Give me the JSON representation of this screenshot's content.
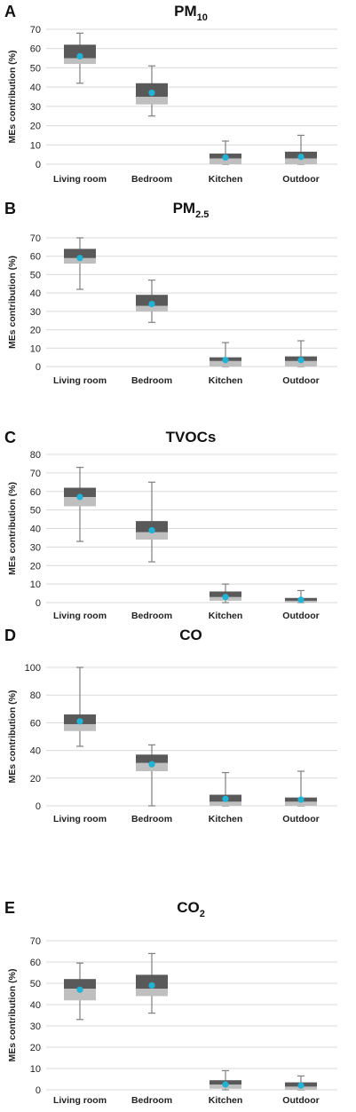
{
  "chart_data": [
    {
      "panel_label": "A",
      "type": "box",
      "title": "PM",
      "title_sub": "10",
      "ylabel": "MEs contribution (%)",
      "categories": [
        "Living room",
        "Bedroom",
        "Kitchen",
        "Outdoor"
      ],
      "ylim": [
        0,
        70
      ],
      "yticks": [
        0,
        10,
        20,
        30,
        40,
        50,
        60,
        70
      ],
      "grid": true,
      "boxes": [
        {
          "min": 42,
          "q1": 52,
          "median": 55,
          "q3": 62,
          "max": 68,
          "mean": 56
        },
        {
          "min": 25,
          "q1": 31,
          "median": 35,
          "q3": 42,
          "max": 51,
          "mean": 37
        },
        {
          "min": 0,
          "q1": 0,
          "median": 3,
          "q3": 5.5,
          "max": 12,
          "mean": 3.5
        },
        {
          "min": 0,
          "q1": 0,
          "median": 3,
          "q3": 6.5,
          "max": 15,
          "mean": 3.8
        }
      ]
    },
    {
      "panel_label": "B",
      "type": "box",
      "title": "PM",
      "title_sub": "2.5",
      "ylabel": "MEs contribution (%)",
      "categories": [
        "Living room",
        "Bedroom",
        "Kitchen",
        "Outdoor"
      ],
      "ylim": [
        0,
        70
      ],
      "yticks": [
        0,
        10,
        20,
        30,
        40,
        50,
        60,
        70
      ],
      "grid": true,
      "boxes": [
        {
          "min": 42,
          "q1": 56,
          "median": 59,
          "q3": 64,
          "max": 70,
          "mean": 59
        },
        {
          "min": 24,
          "q1": 30,
          "median": 33,
          "q3": 39,
          "max": 47,
          "mean": 34
        },
        {
          "min": 0,
          "q1": 0,
          "median": 3,
          "q3": 5,
          "max": 13,
          "mean": 3.5
        },
        {
          "min": 0,
          "q1": 0,
          "median": 3,
          "q3": 5.5,
          "max": 14,
          "mean": 3.5
        }
      ]
    },
    {
      "panel_label": "C",
      "type": "box",
      "title": "TVOCs",
      "title_sub": "",
      "ylabel": "MEs contribution (%)",
      "categories": [
        "Living room",
        "Bedroom",
        "Kitchen",
        "Outdoor"
      ],
      "ylim": [
        0,
        80
      ],
      "yticks": [
        0,
        10,
        20,
        30,
        40,
        50,
        60,
        70,
        80
      ],
      "grid": true,
      "boxes": [
        {
          "min": 33,
          "q1": 52,
          "median": 57,
          "q3": 62,
          "max": 73,
          "mean": 57
        },
        {
          "min": 22,
          "q1": 34,
          "median": 38,
          "q3": 44,
          "max": 65,
          "mean": 39
        },
        {
          "min": 0,
          "q1": 1,
          "median": 3,
          "q3": 6,
          "max": 10,
          "mean": 3
        },
        {
          "min": 0,
          "q1": 0,
          "median": 1,
          "q3": 2.5,
          "max": 6.5,
          "mean": 1.5
        }
      ]
    },
    {
      "panel_label": "D",
      "type": "box",
      "title": "CO",
      "title_sub": "",
      "ylabel": "MEs contribution (%)",
      "categories": [
        "Living room",
        "Bedroom",
        "Kitchen",
        "Outdoor"
      ],
      "ylim": [
        0,
        100
      ],
      "yticks": [
        0,
        20,
        40,
        60,
        80,
        100
      ],
      "grid": true,
      "boxes": [
        {
          "min": 43,
          "q1": 54,
          "median": 59,
          "q3": 66,
          "max": 100,
          "mean": 61
        },
        {
          "min": 0,
          "q1": 25,
          "median": 31,
          "q3": 37,
          "max": 44,
          "mean": 30
        },
        {
          "min": 0,
          "q1": 0,
          "median": 3,
          "q3": 8,
          "max": 24,
          "mean": 5
        },
        {
          "min": 0,
          "q1": 0,
          "median": 3,
          "q3": 6,
          "max": 25,
          "mean": 4.5
        }
      ]
    },
    {
      "panel_label": "E",
      "type": "box",
      "title": "CO",
      "title_sub": "2",
      "ylabel": "MEs contribution (%)",
      "categories": [
        "Living room",
        "Bedroom",
        "Kitchen",
        "Outdoor"
      ],
      "ylim": [
        0,
        70
      ],
      "yticks": [
        0,
        10,
        20,
        30,
        40,
        50,
        60,
        70
      ],
      "grid": true,
      "boxes": [
        {
          "min": 33,
          "q1": 42,
          "median": 47.5,
          "q3": 52,
          "max": 59.5,
          "mean": 47
        },
        {
          "min": 36,
          "q1": 44,
          "median": 47.5,
          "q3": 54,
          "max": 64,
          "mean": 49
        },
        {
          "min": 0,
          "q1": 0.5,
          "median": 2.5,
          "q3": 4.5,
          "max": 9,
          "mean": 2.5
        },
        {
          "min": 0,
          "q1": 0,
          "median": 1.5,
          "q3": 3.5,
          "max": 6.5,
          "mean": 2
        }
      ]
    }
  ],
  "colors": {
    "upper_box": "#595959",
    "lower_box": "#bfbfbf",
    "whisker": "#7f7f7f",
    "mean_marker": "#1fb3d6",
    "grid": "#d9d9d9"
  }
}
